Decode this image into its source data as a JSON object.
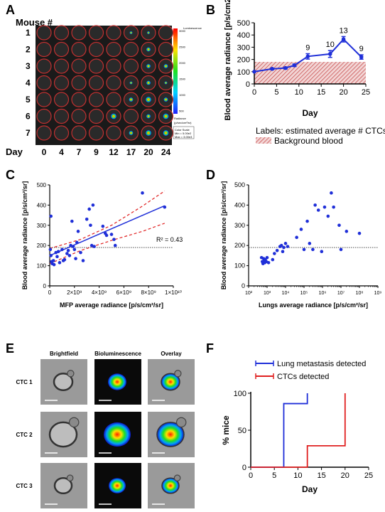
{
  "panels": {
    "A": {
      "letter": "A",
      "header": "Mouse #",
      "mice": [
        "1",
        "2",
        "3",
        "4",
        "5",
        "6",
        "7"
      ],
      "day_label": "Day",
      "days": [
        "0",
        "4",
        "7",
        "9",
        "12",
        "17",
        "20",
        "24"
      ],
      "colorbar_title": "Luminescence",
      "colorbar_ticks": [
        "3000",
        "2500",
        "2000",
        "1500",
        "1000",
        "500"
      ],
      "colorbar_unit_label": "Radiance",
      "colorbar_unit": "(p/sec/cm²/sr)",
      "color_scale_title": "Color Scale",
      "color_scale_min": "Min = 5.00e2",
      "color_scale_max": "Max = 3.00e3"
    },
    "B": {
      "letter": "B",
      "note": "Labels: estimated average # CTCs",
      "legend_label": "Background blood",
      "colors": {
        "line": "#1f2fd8",
        "hatch": "#c74a4a"
      }
    },
    "C": {
      "letter": "C",
      "r2_label": "R² = 0.43"
    },
    "D": {
      "letter": "D"
    },
    "E": {
      "letter": "E",
      "columns": [
        "Brightfield",
        "Bioluminescence",
        "Overlay"
      ],
      "rows": [
        "CTC 1",
        "CTC 2",
        "CTC 3"
      ]
    },
    "F": {
      "letter": "F",
      "colors": {
        "lung": "#1f2fd8",
        "ctc": "#e02020"
      }
    }
  },
  "chart_data": [
    {
      "panel": "B",
      "type": "line",
      "title": "",
      "xlabel": "Day",
      "ylabel": "Blood average radiance [p/s/cm2/sr]",
      "xlim": [
        0,
        25
      ],
      "ylim": [
        0,
        500
      ],
      "xticks": [
        "0",
        "5",
        "10",
        "15",
        "20",
        "25"
      ],
      "yticks": [
        "0",
        "100",
        "200",
        "300",
        "400",
        "500"
      ],
      "x": [
        0,
        4,
        7,
        9,
        12,
        17,
        20,
        24
      ],
      "y": [
        100,
        123,
        130,
        152,
        225,
        245,
        365,
        220
      ],
      "err": [
        0,
        6,
        8,
        10,
        22,
        28,
        22,
        18
      ],
      "data_labels": [
        {
          "x": 12,
          "text": "9"
        },
        {
          "x": 17,
          "text": "10"
        },
        {
          "x": 20,
          "text": "13"
        },
        {
          "x": 24,
          "text": "9"
        }
      ],
      "background_band": [
        0,
        180
      ],
      "grid": false
    },
    {
      "panel": "C",
      "type": "scatter",
      "title": "",
      "xlabel": "MFP average radiance [p/s/cm²/sr]",
      "ylabel": "Blood average radiance [p/s/cm²/sr]",
      "xlim": [
        0,
        10
      ],
      "ylim": [
        0,
        500
      ],
      "xticks": [
        "0",
        "2×10⁹",
        "4×10⁹",
        "6×10⁹",
        "8×10⁹",
        "1×10¹⁰"
      ],
      "yticks": [
        "0",
        "100",
        "200",
        "300",
        "400",
        "500"
      ],
      "x_unit_note": "×10⁹",
      "points": [
        [
          0.1,
          345
        ],
        [
          0.05,
          180
        ],
        [
          0.1,
          150
        ],
        [
          0.15,
          120
        ],
        [
          0.2,
          110
        ],
        [
          0.3,
          125
        ],
        [
          0.35,
          105
        ],
        [
          0.5,
          165
        ],
        [
          0.6,
          145
        ],
        [
          0.7,
          170
        ],
        [
          0.8,
          115
        ],
        [
          1.0,
          180
        ],
        [
          1.1,
          125
        ],
        [
          1.2,
          130
        ],
        [
          1.4,
          160
        ],
        [
          1.5,
          175
        ],
        [
          1.6,
          150
        ],
        [
          1.7,
          200
        ],
        [
          1.8,
          320
        ],
        [
          1.9,
          195
        ],
        [
          2.0,
          180
        ],
        [
          2.1,
          135
        ],
        [
          2.2,
          215
        ],
        [
          2.3,
          270
        ],
        [
          2.5,
          165
        ],
        [
          2.7,
          125
        ],
        [
          3.0,
          330
        ],
        [
          3.2,
          380
        ],
        [
          3.3,
          300
        ],
        [
          3.4,
          200
        ],
        [
          3.5,
          400
        ],
        [
          3.6,
          195
        ],
        [
          4.3,
          295
        ],
        [
          4.5,
          260
        ],
        [
          4.6,
          250
        ],
        [
          5.0,
          255
        ],
        [
          5.2,
          230
        ],
        [
          5.3,
          200
        ],
        [
          7.5,
          460
        ],
        [
          9.3,
          390
        ]
      ],
      "fit": {
        "x": [
          0,
          9.3
        ],
        "y": [
          150,
          397
        ]
      },
      "ci_upper": {
        "x": [
          0,
          2.5,
          5,
          7.5,
          9.3
        ],
        "y": [
          185,
          230,
          300,
          395,
          470
        ]
      },
      "ci_lower": {
        "x": [
          0,
          2.5,
          5,
          7.5,
          9.3
        ],
        "y": [
          110,
          175,
          225,
          270,
          310
        ]
      },
      "reference_y": 190,
      "grid": false
    },
    {
      "panel": "D",
      "type": "scatter",
      "title": "",
      "xlabel": "Lungs average radiance [p/s/cm²/sr]",
      "ylabel": "Blood average radiance [p/s/cm²/sr]",
      "xscale": "log",
      "xlim": [
        100,
        1000000000
      ],
      "ylim": [
        0,
        500
      ],
      "xticks": [
        "10²",
        "10³",
        "10⁴",
        "10⁵",
        "10⁶",
        "10⁷",
        "10⁸",
        "10⁹"
      ],
      "yticks": [
        "0",
        "100",
        "200",
        "300",
        "400",
        "500"
      ],
      "points": [
        [
          500,
          140
        ],
        [
          550,
          120
        ],
        [
          600,
          110
        ],
        [
          650,
          135
        ],
        [
          700,
          125
        ],
        [
          750,
          115
        ],
        [
          800,
          130
        ],
        [
          900,
          120
        ],
        [
          1000,
          140
        ],
        [
          1200,
          115
        ],
        [
          2000,
          130
        ],
        [
          2500,
          160
        ],
        [
          3500,
          175
        ],
        [
          5000,
          195
        ],
        [
          6000,
          200
        ],
        [
          7000,
          170
        ],
        [
          8000,
          190
        ],
        [
          10000,
          210
        ],
        [
          13000,
          195
        ],
        [
          40000,
          240
        ],
        [
          70000,
          280
        ],
        [
          100000,
          180
        ],
        [
          150000,
          320
        ],
        [
          200000,
          210
        ],
        [
          300000,
          180
        ],
        [
          400000,
          400
        ],
        [
          600000,
          375
        ],
        [
          900000,
          170
        ],
        [
          1300000,
          390
        ],
        [
          2000000,
          345
        ],
        [
          3000000,
          460
        ],
        [
          4000000,
          390
        ],
        [
          8000000,
          300
        ],
        [
          10000000,
          180
        ],
        [
          20000000,
          270
        ],
        [
          100000000,
          260
        ]
      ],
      "reference_y": 190,
      "grid": false
    },
    {
      "panel": "F",
      "type": "line",
      "title": "",
      "xlabel": "Day",
      "ylabel": "% mice",
      "xlim": [
        0,
        25
      ],
      "ylim": [
        0,
        100
      ],
      "xticks": [
        "0",
        "5",
        "10",
        "15",
        "20",
        "25"
      ],
      "yticks": [
        "0",
        "50",
        "100"
      ],
      "series": [
        {
          "name": "Lung metastasis detected",
          "x": [
            0,
            7,
            7,
            12,
            12
          ],
          "y": [
            0,
            0,
            86,
            86,
            100
          ]
        },
        {
          "name": "CTCs detected",
          "x": [
            0,
            12,
            12,
            20,
            20
          ],
          "y": [
            0,
            0,
            29,
            29,
            100
          ]
        }
      ],
      "grid": false
    }
  ]
}
